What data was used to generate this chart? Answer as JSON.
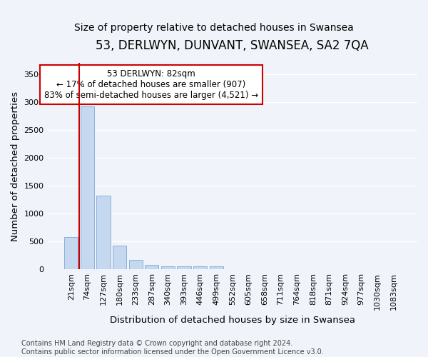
{
  "title": "53, DERLWYN, DUNVANT, SWANSEA, SA2 7QA",
  "subtitle": "Size of property relative to detached houses in Swansea",
  "xlabel": "Distribution of detached houses by size in Swansea",
  "ylabel": "Number of detached properties",
  "bins": [
    "21sqm",
    "74sqm",
    "127sqm",
    "180sqm",
    "233sqm",
    "287sqm",
    "340sqm",
    "393sqm",
    "446sqm",
    "499sqm",
    "552sqm",
    "605sqm",
    "658sqm",
    "711sqm",
    "764sqm",
    "818sqm",
    "871sqm",
    "924sqm",
    "977sqm",
    "1030sqm",
    "1083sqm"
  ],
  "values": [
    580,
    2920,
    1320,
    420,
    170,
    75,
    50,
    50,
    50,
    50,
    0,
    0,
    0,
    0,
    0,
    0,
    0,
    0,
    0,
    0,
    0
  ],
  "bar_color": "#c5d8f0",
  "bar_edgecolor": "#7aaad4",
  "vline_color": "#cc0000",
  "vline_x_index": 1,
  "annotation_text": "53 DERLWYN: 82sqm\n← 17% of detached houses are smaller (907)\n83% of semi-detached houses are larger (4,521) →",
  "annotation_box_facecolor": "#ffffff",
  "annotation_box_edgecolor": "#cc0000",
  "ylim": [
    0,
    3700
  ],
  "yticks": [
    0,
    500,
    1000,
    1500,
    2000,
    2500,
    3000,
    3500
  ],
  "footnote": "Contains HM Land Registry data © Crown copyright and database right 2024.\nContains public sector information licensed under the Open Government Licence v3.0.",
  "background_color": "#f0f4fa",
  "plot_background_color": "#f0f4fa",
  "grid_color": "#ffffff",
  "title_fontsize": 12,
  "subtitle_fontsize": 10,
  "label_fontsize": 9.5,
  "tick_fontsize": 8,
  "annotation_fontsize": 8.5,
  "footnote_fontsize": 7
}
